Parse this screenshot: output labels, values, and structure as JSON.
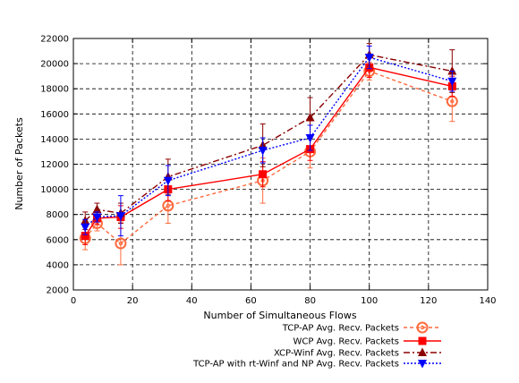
{
  "chart_data": {
    "type": "line",
    "title": "",
    "xlabel": "Number of Simultaneous Flows",
    "ylabel": "Number of Packets",
    "xlim": [
      0,
      140
    ],
    "ylim": [
      2000,
      22000
    ],
    "xticks": [
      0,
      20,
      40,
      60,
      80,
      100,
      120,
      140
    ],
    "yticks": [
      2000,
      4000,
      6000,
      8000,
      10000,
      12000,
      14000,
      16000,
      18000,
      20000,
      22000
    ],
    "grid": true,
    "legend_position": "bottom-right",
    "series": [
      {
        "name": "TCP-AP Avg. Recv. Packets",
        "color": "#ff6a3d",
        "line": "dashed",
        "marker": "circle-open",
        "x": [
          4,
          8,
          16,
          32,
          64,
          80,
          100,
          128
        ],
        "y": [
          6100,
          7300,
          5700,
          8700,
          10700,
          13000,
          19400,
          17000
        ],
        "err": [
          900,
          600,
          1700,
          1400,
          1800,
          1300,
          700,
          1600
        ]
      },
      {
        "name": "WCP Avg. Recv. Packets",
        "color": "#ff0000",
        "line": "solid",
        "marker": "square",
        "x": [
          4,
          8,
          16,
          32,
          64,
          80,
          100,
          128
        ],
        "y": [
          6300,
          7700,
          7800,
          10000,
          11200,
          13200,
          19700,
          18200
        ],
        "err": [
          700,
          500,
          900,
          900,
          1000,
          900,
          800,
          800
        ]
      },
      {
        "name": "XCP-Winf Avg. Recv. Packets",
        "color": "#8b0000",
        "line": "dashdot",
        "marker": "triangle-up",
        "x": [
          4,
          8,
          16,
          32,
          64,
          80,
          100,
          128
        ],
        "y": [
          7500,
          8400,
          8100,
          11000,
          13500,
          15700,
          20700,
          19400
        ],
        "err": [
          700,
          500,
          800,
          1400,
          1700,
          1600,
          900,
          1700
        ]
      },
      {
        "name": "TCP-AP with rt-Winf and NP Avg. Recv. Packets",
        "color": "#0000ff",
        "line": "dotted",
        "marker": "triangle-down",
        "x": [
          4,
          8,
          16,
          32,
          64,
          80,
          100,
          128
        ],
        "y": [
          7000,
          7800,
          7900,
          10700,
          13100,
          14100,
          20500,
          18600
        ],
        "err": [
          600,
          400,
          1600,
          1200,
          1000,
          1000,
          900,
          800
        ]
      }
    ]
  }
}
